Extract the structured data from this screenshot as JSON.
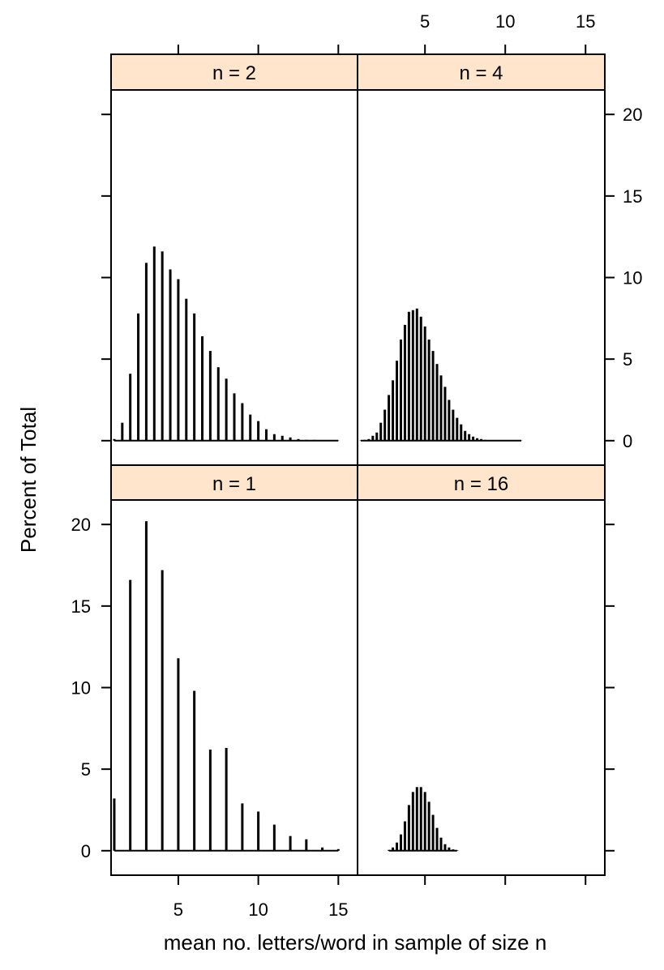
{
  "chart_data": {
    "type": "bar",
    "layout": "2x2 trellis",
    "xlabel": "mean no. letters/word in sample of size n",
    "ylabel": "Percent of Total",
    "xlim": [
      0.8,
      16.2
    ],
    "ylim": [
      -1.5,
      21.5
    ],
    "x_ticks": [
      5,
      10,
      15
    ],
    "y_ticks": [
      0,
      5,
      10,
      15,
      20
    ],
    "strip_color": "#ffe5cc",
    "bar_color": "#000000",
    "panels": [
      {
        "label": "n =  1",
        "n": 1,
        "x": [
          1,
          2,
          3,
          4,
          5,
          6,
          7,
          8,
          9,
          10,
          11,
          12,
          13,
          14,
          15
        ],
        "values": [
          3.2,
          16.6,
          20.2,
          17.2,
          11.8,
          9.8,
          6.2,
          6.3,
          2.9,
          2.4,
          1.6,
          0.9,
          0.7,
          0.2,
          0.1
        ]
      },
      {
        "label": "n =  16",
        "n": 16,
        "x": [
          2.75,
          3.0,
          3.25,
          3.5,
          3.75,
          4.0,
          4.25,
          4.5,
          4.75,
          5.0,
          5.25,
          5.5,
          5.75,
          6.0,
          6.25,
          6.5,
          6.75,
          7.0
        ],
        "values": [
          0.05,
          0.2,
          0.5,
          1.0,
          1.8,
          2.8,
          3.6,
          3.9,
          3.9,
          3.6,
          3.0,
          2.2,
          1.4,
          0.8,
          0.4,
          0.2,
          0.08,
          0.03
        ]
      },
      {
        "label": "n =  2",
        "n": 2,
        "x": [
          1.0,
          1.5,
          2.0,
          2.5,
          3.0,
          3.5,
          4.0,
          4.5,
          5.0,
          5.5,
          6.0,
          6.5,
          7.0,
          7.5,
          8.0,
          8.5,
          9.0,
          9.5,
          10.0,
          10.5,
          11.0,
          11.5,
          12.0,
          12.5,
          13.0,
          13.5,
          14.0,
          14.5,
          15.0
        ],
        "values": [
          0.1,
          1.1,
          4.1,
          7.8,
          10.9,
          11.9,
          11.6,
          10.5,
          9.9,
          8.7,
          7.8,
          6.4,
          5.5,
          4.5,
          3.8,
          2.9,
          2.3,
          1.6,
          1.2,
          0.7,
          0.4,
          0.3,
          0.2,
          0.1,
          0.05,
          0.05,
          0.02,
          0.02,
          0.01
        ]
      },
      {
        "label": "n =  4",
        "n": 4,
        "x": [
          1.0,
          1.25,
          1.5,
          1.75,
          2.0,
          2.25,
          2.5,
          2.75,
          3.0,
          3.25,
          3.5,
          3.75,
          4.0,
          4.25,
          4.5,
          4.75,
          5.0,
          5.25,
          5.5,
          5.75,
          6.0,
          6.25,
          6.5,
          6.75,
          7.0,
          7.25,
          7.5,
          7.75,
          8.0,
          8.25,
          8.5,
          8.75,
          9.0,
          9.25,
          9.5,
          9.75,
          10.0,
          10.5,
          11.0
        ],
        "values": [
          0.02,
          0.05,
          0.1,
          0.3,
          0.5,
          1.1,
          1.9,
          2.8,
          3.7,
          4.9,
          6.2,
          7.1,
          7.9,
          8.0,
          8.1,
          7.6,
          7.0,
          6.2,
          5.5,
          4.7,
          4.0,
          3.3,
          2.5,
          1.9,
          1.4,
          1.0,
          0.6,
          0.4,
          0.25,
          0.15,
          0.1,
          0.05,
          0.03,
          0.02,
          0.02,
          0.01,
          0.01,
          0.01,
          0.01
        ]
      }
    ]
  }
}
